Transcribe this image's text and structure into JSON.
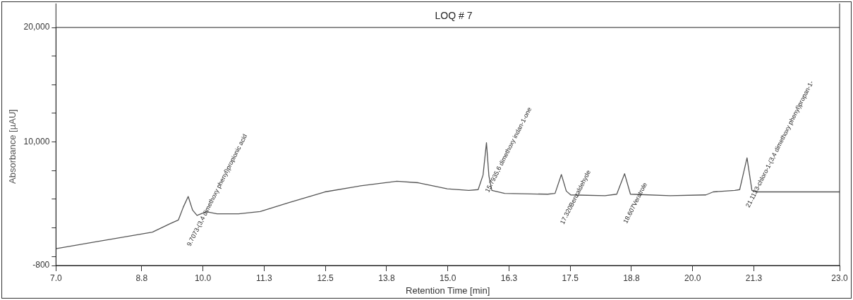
{
  "chart_data": {
    "type": "line",
    "title": "LOQ # 7",
    "xlabel": "Retention Time [min]",
    "ylabel": "Absorbance [µAU]",
    "x": [
      7.0,
      7.79,
      8.53,
      8.97,
      9.33,
      9.5,
      9.6,
      9.7,
      9.79,
      9.88,
      10.07,
      10.29,
      10.73,
      11.17,
      11.76,
      12.49,
      13.22,
      13.96,
      14.4,
      14.99,
      15.43,
      15.62,
      15.72,
      15.79,
      15.84,
      15.9,
      16.16,
      17.04,
      17.19,
      17.32,
      17.42,
      17.51,
      18.21,
      18.45,
      18.61,
      18.73,
      19.54,
      20.27,
      20.42,
      20.86,
      20.96,
      21.11,
      21.21,
      21.3,
      23.0
    ],
    "series": [
      {
        "color": "#555555",
        "values": [
          670,
          1260,
          1790,
          2120,
          2850,
          3180,
          4300,
          5230,
          4040,
          3580,
          3900,
          3710,
          3710,
          3910,
          4700,
          5630,
          6160,
          6560,
          6430,
          5900,
          5760,
          5830,
          7100,
          9930,
          7020,
          5760,
          5500,
          5430,
          5500,
          7150,
          5700,
          5370,
          5300,
          5430,
          7220,
          5430,
          5300,
          5370,
          5630,
          5760,
          5830,
          8610,
          5760,
          5630,
          5630
        ]
      }
    ],
    "xlim": [
      7.0,
      23.0
    ],
    "xticks": [
      {
        "value": 7.0,
        "label": "7.0"
      },
      {
        "value": 8.75,
        "label": "8.8"
      },
      {
        "value": 10.0,
        "label": "10.0"
      },
      {
        "value": 11.25,
        "label": "11.3"
      },
      {
        "value": 12.5,
        "label": "12.5"
      },
      {
        "value": 13.75,
        "label": "13.8"
      },
      {
        "value": 15.0,
        "label": "15.0"
      },
      {
        "value": 16.25,
        "label": "16.3"
      },
      {
        "value": 17.5,
        "label": "17.5"
      },
      {
        "value": 18.75,
        "label": "18.8"
      },
      {
        "value": 20.0,
        "label": "20.0"
      },
      {
        "value": 21.25,
        "label": "21.3"
      },
      {
        "value": 23.0,
        "label": "23.0"
      }
    ],
    "ylim": [
      -800,
      20000
    ],
    "yticks": [
      -800,
      {
        "value": 0,
        "label": null
      },
      {
        "value": 2500,
        "label": null
      },
      {
        "value": 5000,
        "label": null
      },
      {
        "value": 7500,
        "label": null
      },
      {
        "value": 10000,
        "label": "10,000"
      },
      {
        "value": 12500,
        "label": null
      },
      {
        "value": 15000,
        "label": null
      },
      {
        "value": 17500,
        "label": null
      },
      {
        "value": 20000,
        "label": "20,000"
      }
    ],
    "grid": false,
    "legend": false,
    "marker": "none",
    "line_style": "solid",
    "annotations": [
      {
        "text": "9.7073-(3,4 dimethoxy phenyl)propionic acid",
        "x": 9.7,
        "y": 5230
      },
      {
        "text": "15.7935,6 dimethoxy indan-1-one",
        "x": 15.79,
        "y": 9930
      },
      {
        "text": "17.320Benzaldehyde",
        "x": 17.32,
        "y": 7150
      },
      {
        "text": "18.607Veratrole",
        "x": 18.61,
        "y": 7220
      },
      {
        "text": "21.1133-chloro-1-(3,4 dimethoxy phenyl)propan-1-",
        "x": 21.11,
        "y": 8610
      }
    ]
  }
}
